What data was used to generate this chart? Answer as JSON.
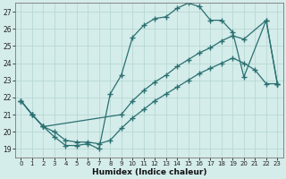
{
  "xlabel": "Humidex (Indice chaleur)",
  "bg_color": "#d4ecea",
  "grid_color": "#b8d8d4",
  "line_color": "#2a7070",
  "marker": "+",
  "markersize": 4,
  "linewidth": 0.9,
  "xlim": [
    -0.5,
    23.5
  ],
  "ylim": [
    18.5,
    27.5
  ],
  "yticks": [
    19,
    20,
    21,
    22,
    23,
    24,
    25,
    26,
    27
  ],
  "xticks": [
    0,
    1,
    2,
    3,
    4,
    5,
    6,
    7,
    8,
    9,
    10,
    11,
    12,
    13,
    14,
    15,
    16,
    17,
    18,
    19,
    20,
    21,
    22,
    23
  ],
  "line1_x": [
    0,
    1,
    2,
    3,
    4,
    5,
    6,
    7,
    8,
    9,
    10,
    11,
    12,
    13,
    14,
    15,
    16,
    17,
    18,
    19,
    20,
    22,
    23
  ],
  "line1_y": [
    21.8,
    21.0,
    20.3,
    19.7,
    19.2,
    19.2,
    19.3,
    19.0,
    22.2,
    23.3,
    25.5,
    26.2,
    26.6,
    26.7,
    27.2,
    27.5,
    27.3,
    26.5,
    26.5,
    25.8,
    23.2,
    26.5,
    22.8
  ],
  "line2_x": [
    0,
    1,
    2,
    9,
    10,
    11,
    12,
    13,
    14,
    15,
    16,
    17,
    18,
    19,
    20,
    22,
    23
  ],
  "line2_y": [
    21.8,
    21.0,
    20.3,
    21.0,
    21.8,
    22.4,
    22.9,
    23.3,
    23.8,
    24.2,
    24.6,
    24.9,
    25.3,
    25.6,
    25.4,
    26.5,
    22.8
  ],
  "line3_x": [
    0,
    1,
    2,
    3,
    4,
    5,
    6,
    7,
    8,
    9,
    10,
    11,
    12,
    13,
    14,
    15,
    16,
    17,
    18,
    19,
    20,
    21,
    22,
    23
  ],
  "line3_y": [
    21.8,
    21.0,
    20.3,
    20.0,
    19.5,
    19.4,
    19.4,
    19.3,
    19.5,
    20.2,
    20.8,
    21.3,
    21.8,
    22.2,
    22.6,
    23.0,
    23.4,
    23.7,
    24.0,
    24.3,
    24.0,
    23.6,
    22.8,
    22.8
  ]
}
